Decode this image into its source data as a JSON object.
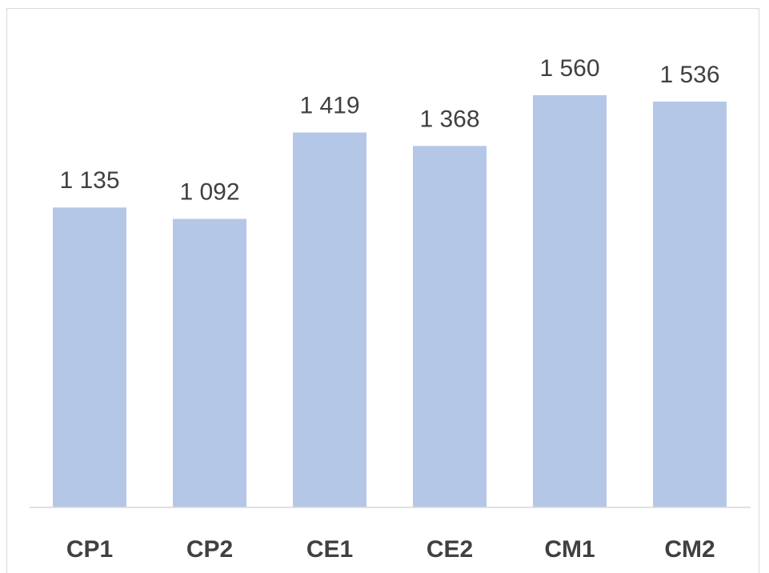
{
  "chart_data": {
    "type": "bar",
    "categories": [
      "CP1",
      "CP2",
      "CE1",
      "CE2",
      "CM1",
      "CM2"
    ],
    "values": [
      1135,
      1092,
      1419,
      1368,
      1560,
      1536
    ],
    "value_labels": [
      "1 135",
      "1 092",
      "1 419",
      "1 368",
      "1 560",
      "1 536"
    ],
    "color": "#b4c7e7"
  }
}
